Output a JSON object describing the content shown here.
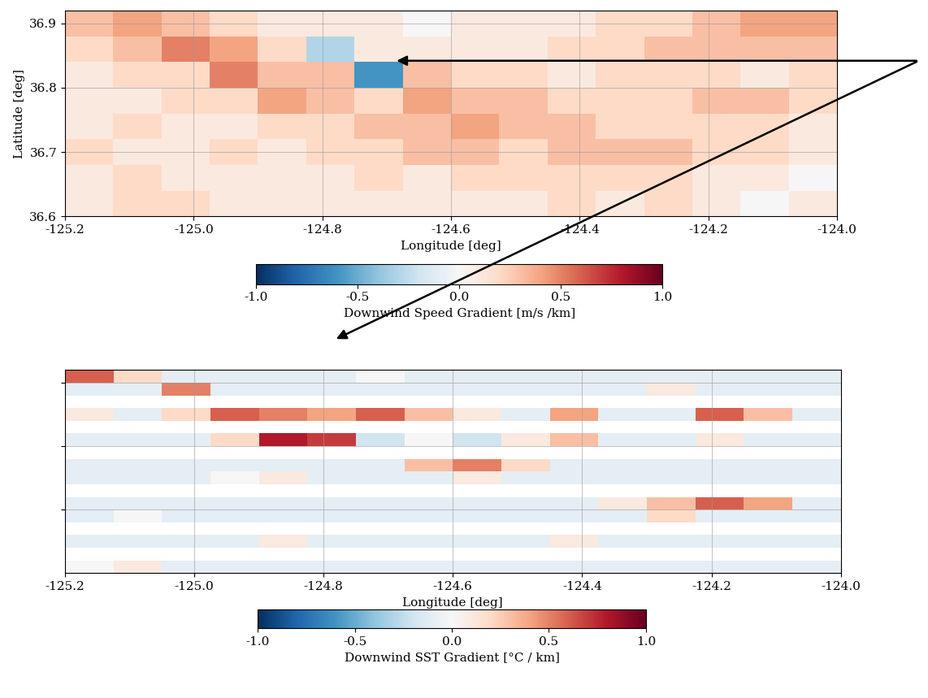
{
  "chart_data": [
    {
      "type": "heatmap",
      "x_label": "Longitude [deg]",
      "y_label": "Latitude [deg]",
      "xlim": [
        -125.2,
        -124.0
      ],
      "xticks": [
        {
          "value": -125.2,
          "label": "-125.2"
        },
        {
          "value": -125.0,
          "label": "-125.0"
        },
        {
          "value": -124.8,
          "label": "-124.8"
        },
        {
          "value": -124.6,
          "label": "-124.6"
        },
        {
          "value": -124.4,
          "label": "-124.4"
        },
        {
          "value": -124.2,
          "label": "-124.2"
        },
        {
          "value": -124.0,
          "label": "-124.0"
        }
      ],
      "ylim": [
        36.6,
        36.92
      ],
      "yticks": [
        {
          "value": 36.6,
          "label": "36.6"
        },
        {
          "value": 36.7,
          "label": "36.7"
        },
        {
          "value": 36.8,
          "label": "36.8"
        },
        {
          "value": 36.9,
          "label": "36.9"
        }
      ],
      "grid": true,
      "color": "RdBu_r",
      "cells": [
        [
          0.3,
          0.4,
          0.3,
          0.2,
          0.1,
          0.1,
          0.1,
          0.0,
          0.1,
          0.1,
          0.1,
          0.2,
          0.2,
          0.3,
          0.4,
          0.4
        ],
        [
          0.2,
          0.3,
          0.5,
          0.4,
          0.2,
          -0.3,
          0.1,
          0.1,
          0.1,
          0.1,
          0.2,
          0.2,
          0.3,
          0.3,
          0.3,
          0.3
        ],
        [
          0.1,
          0.2,
          0.2,
          0.5,
          0.3,
          0.3,
          -0.6,
          0.3,
          0.2,
          0.2,
          0.1,
          0.2,
          0.2,
          0.2,
          0.1,
          0.2
        ],
        [
          0.1,
          0.1,
          0.2,
          0.2,
          0.4,
          0.3,
          0.2,
          0.4,
          0.3,
          0.3,
          0.2,
          0.2,
          0.2,
          0.3,
          0.3,
          0.2
        ],
        [
          0.1,
          0.2,
          0.1,
          0.1,
          0.2,
          0.2,
          0.3,
          0.3,
          0.4,
          0.3,
          0.3,
          0.2,
          0.2,
          0.2,
          0.2,
          0.1
        ],
        [
          0.2,
          0.1,
          0.1,
          0.2,
          0.1,
          0.2,
          0.2,
          0.3,
          0.3,
          0.2,
          0.3,
          0.3,
          0.3,
          0.2,
          0.2,
          0.1
        ],
        [
          0.1,
          0.2,
          0.1,
          0.1,
          0.1,
          0.1,
          0.2,
          0.1,
          0.2,
          0.2,
          0.2,
          0.2,
          0.2,
          0.1,
          0.1,
          0.0
        ],
        [
          0.1,
          0.2,
          0.2,
          0.1,
          0.1,
          0.1,
          0.1,
          0.1,
          0.1,
          0.1,
          0.2,
          0.1,
          0.2,
          0.1,
          0.0,
          0.1
        ]
      ],
      "colorbar_label": "Downwind Speed Gradient [m/s /km]",
      "colorbar_range": [
        -1.0,
        1.0
      ],
      "colorbar_ticks": [
        {
          "value": -1.0,
          "label": "-1.0"
        },
        {
          "value": -0.5,
          "label": "-0.5"
        },
        {
          "value": 0.0,
          "label": "0.0"
        },
        {
          "value": 0.5,
          "label": "0.5"
        },
        {
          "value": 1.0,
          "label": "1.0"
        }
      ]
    },
    {
      "type": "heatmap",
      "x_label": "Longitude [deg]",
      "xlim": [
        -125.2,
        -124.0
      ],
      "xticks": [
        {
          "value": -125.2,
          "label": "-125.2"
        },
        {
          "value": -125.0,
          "label": "-125.0"
        },
        {
          "value": -124.8,
          "label": "-124.8"
        },
        {
          "value": -124.6,
          "label": "-124.6"
        },
        {
          "value": -124.4,
          "label": "-124.4"
        },
        {
          "value": -124.2,
          "label": "-124.2"
        },
        {
          "value": -124.0,
          "label": "-124.0"
        }
      ],
      "ylim": [
        36.6,
        36.92
      ],
      "yticks": [
        36.7,
        36.8,
        36.9
      ],
      "tick_labels": "x",
      "grid": true,
      "color": "RdBu_r",
      "cells": [
        [
          0.6,
          0.2,
          -0.1,
          -0.1,
          -0.1,
          -0.1,
          0.0,
          -0.1,
          -0.1,
          -0.1,
          -0.1,
          -0.1,
          -0.1,
          -0.1,
          -0.1,
          -0.1
        ],
        [
          -0.1,
          -0.1,
          0.5,
          -0.1,
          -0.1,
          -0.1,
          -0.1,
          -0.1,
          -0.1,
          -0.1,
          -0.1,
          -0.1,
          0.1,
          -0.1,
          -0.1,
          -0.1
        ],
        [
          null,
          null,
          null,
          null,
          null,
          null,
          null,
          null,
          null,
          null,
          null,
          null,
          null,
          null,
          null,
          null
        ],
        [
          0.1,
          -0.1,
          0.2,
          0.6,
          0.5,
          0.4,
          0.6,
          0.3,
          0.1,
          -0.1,
          0.4,
          -0.1,
          -0.1,
          0.6,
          0.3,
          -0.1
        ],
        [
          null,
          null,
          null,
          null,
          null,
          null,
          null,
          null,
          null,
          null,
          null,
          null,
          null,
          null,
          null,
          null
        ],
        [
          -0.1,
          -0.1,
          -0.1,
          0.2,
          0.8,
          0.7,
          -0.2,
          0.0,
          -0.2,
          0.1,
          0.3,
          -0.1,
          -0.1,
          0.1,
          -0.1,
          -0.1
        ],
        [
          null,
          null,
          null,
          null,
          null,
          null,
          null,
          null,
          null,
          null,
          null,
          null,
          null,
          null,
          null,
          null
        ],
        [
          -0.1,
          -0.1,
          -0.1,
          -0.1,
          -0.1,
          -0.1,
          -0.1,
          0.3,
          0.5,
          0.2,
          -0.1,
          -0.1,
          -0.1,
          -0.1,
          -0.1,
          -0.1
        ],
        [
          -0.1,
          -0.1,
          -0.1,
          0.0,
          0.1,
          -0.1,
          -0.1,
          -0.1,
          0.1,
          -0.1,
          -0.1,
          -0.1,
          -0.1,
          -0.1,
          -0.1,
          -0.1
        ],
        [
          null,
          null,
          null,
          null,
          null,
          null,
          null,
          null,
          null,
          null,
          null,
          null,
          null,
          null,
          null,
          null
        ],
        [
          -0.1,
          -0.1,
          -0.1,
          -0.1,
          -0.1,
          -0.1,
          -0.1,
          -0.1,
          -0.1,
          -0.1,
          -0.1,
          0.1,
          0.3,
          0.6,
          0.4,
          -0.1
        ],
        [
          -0.1,
          0.0,
          -0.1,
          -0.1,
          -0.1,
          -0.1,
          -0.1,
          -0.1,
          -0.1,
          -0.1,
          -0.1,
          -0.1,
          0.2,
          -0.1,
          -0.1,
          -0.1
        ],
        [
          null,
          null,
          null,
          null,
          null,
          null,
          null,
          null,
          null,
          null,
          null,
          null,
          null,
          null,
          null,
          null
        ],
        [
          -0.1,
          -0.1,
          -0.1,
          -0.1,
          0.1,
          -0.1,
          -0.1,
          -0.1,
          -0.1,
          -0.1,
          0.1,
          -0.1,
          -0.1,
          -0.1,
          -0.1,
          -0.1
        ],
        [
          null,
          null,
          null,
          null,
          null,
          null,
          null,
          null,
          null,
          null,
          null,
          null,
          null,
          null,
          null,
          null
        ],
        [
          0.0,
          0.1,
          -0.1,
          -0.1,
          -0.1,
          -0.1,
          -0.1,
          -0.1,
          -0.1,
          -0.1,
          -0.1,
          -0.1,
          -0.1,
          -0.1,
          -0.1,
          -0.1
        ]
      ],
      "colorbar_label": "Downwind SST Gradient [°C / km]",
      "colorbar_range": [
        -1.0,
        1.0
      ],
      "colorbar_ticks": [
        {
          "value": -1.0,
          "label": "-1.0"
        },
        {
          "value": -0.5,
          "label": "-0.5"
        },
        {
          "value": 0.0,
          "label": "0.0"
        },
        {
          "value": 0.5,
          "label": "0.5"
        },
        {
          "value": 1.0,
          "label": "1.0"
        }
      ]
    }
  ]
}
